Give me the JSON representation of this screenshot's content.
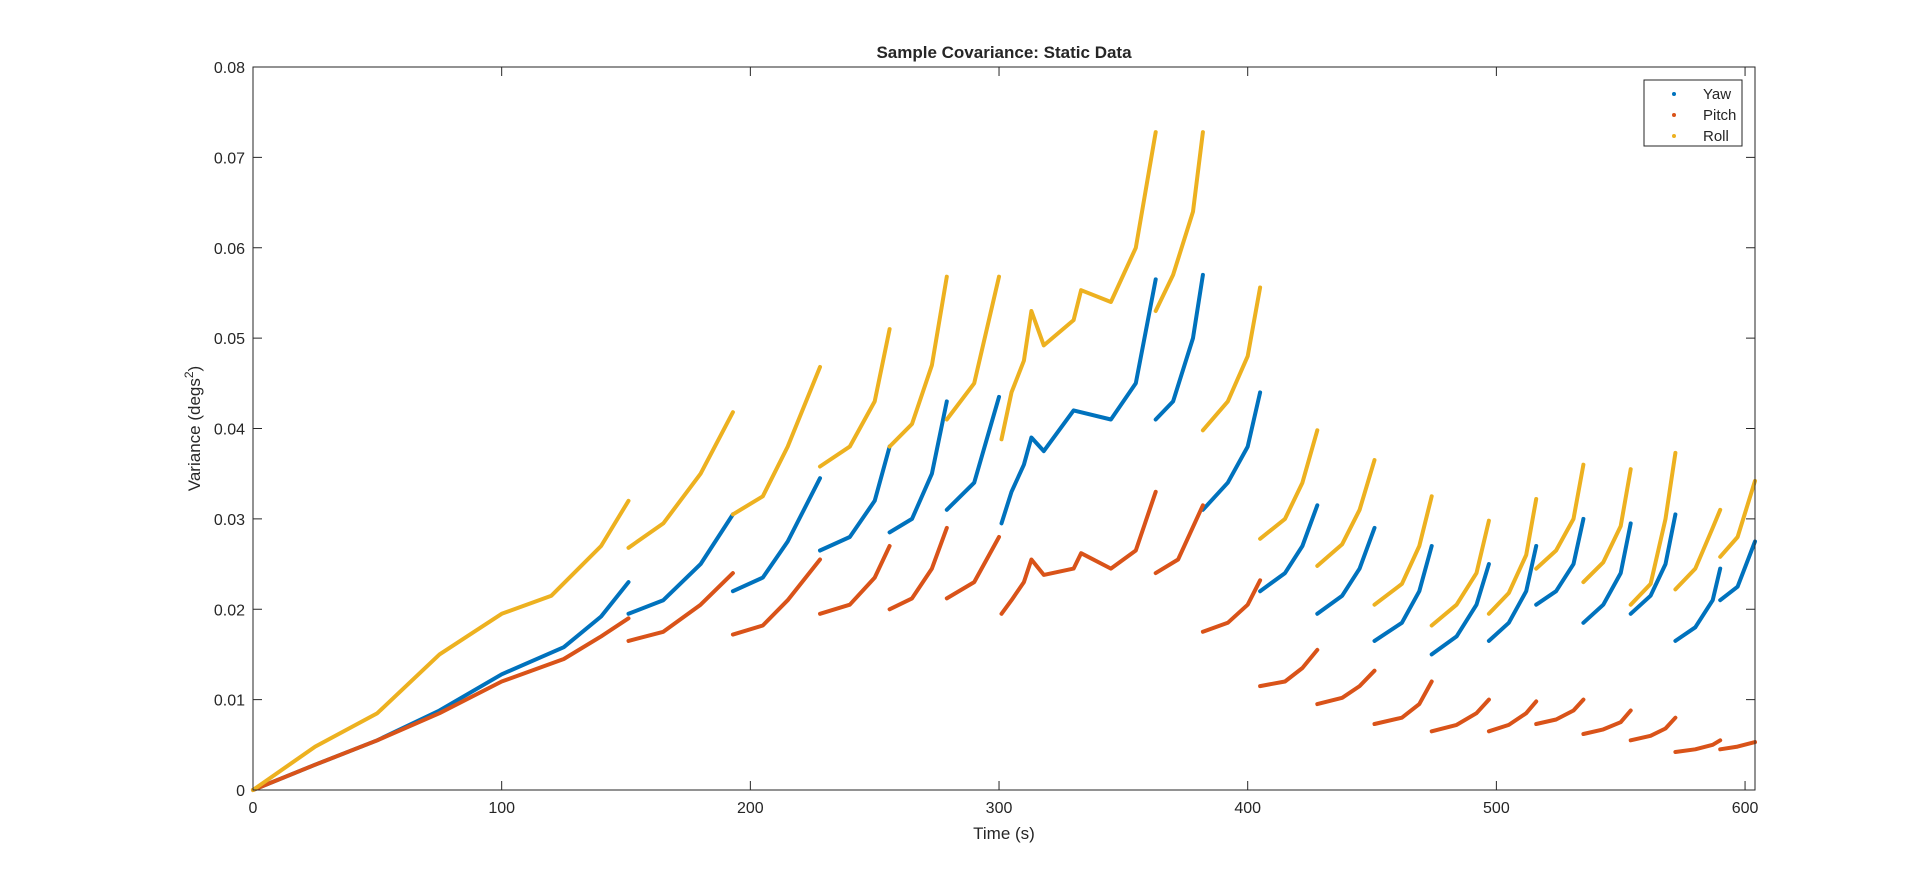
{
  "chart_data": {
    "type": "scatter",
    "title": "Sample Covariance: Static Data",
    "xlabel": "Time (s)",
    "ylabel": "Variance (degs",
    "ylabel_superscript": "2",
    "ylabel_suffix": ")",
    "xlim": [
      0,
      604
    ],
    "ylim": [
      0,
      0.08
    ],
    "xticks": [
      0,
      100,
      200,
      300,
      400,
      500,
      600
    ],
    "yticks": [
      0,
      0.01,
      0.02,
      0.03,
      0.04,
      0.05,
      0.06,
      0.07,
      0.08
    ],
    "xtick_labels": [
      "0",
      "100",
      "200",
      "300",
      "400",
      "500",
      "600"
    ],
    "ytick_labels": [
      "0",
      "0.01",
      "0.02",
      "0.03",
      "0.04",
      "0.05",
      "0.06",
      "0.07",
      "0.08"
    ],
    "grid": false,
    "legend_position": "top-right",
    "series": [
      {
        "name": "Yaw",
        "color": "#0072BD",
        "segments": [
          [
            [
              0,
              0
            ],
            [
              25,
              0.0028
            ],
            [
              50,
              0.0055
            ],
            [
              75,
              0.0088
            ],
            [
              100,
              0.0128
            ],
            [
              125,
              0.0158
            ],
            [
              140,
              0.0192
            ],
            [
              151,
              0.023
            ]
          ],
          [
            [
              151,
              0.0195
            ],
            [
              165,
              0.021
            ],
            [
              180,
              0.025
            ],
            [
              193,
              0.0305
            ]
          ],
          [
            [
              193,
              0.022
            ],
            [
              205,
              0.0235
            ],
            [
              215,
              0.0275
            ],
            [
              228,
              0.0345
            ]
          ],
          [
            [
              228,
              0.0265
            ],
            [
              240,
              0.028
            ],
            [
              250,
              0.032
            ],
            [
              256,
              0.038
            ]
          ],
          [
            [
              256,
              0.0285
            ],
            [
              265,
              0.03
            ],
            [
              273,
              0.035
            ],
            [
              279,
              0.043
            ]
          ],
          [
            [
              279,
              0.031
            ],
            [
              290,
              0.034
            ],
            [
              300,
              0.0435
            ]
          ],
          [
            [
              301,
              0.0295
            ],
            [
              305,
              0.033
            ],
            [
              310,
              0.036
            ],
            [
              313,
              0.039
            ],
            [
              318,
              0.0375
            ],
            [
              330,
              0.042
            ],
            [
              345,
              0.041
            ],
            [
              355,
              0.045
            ],
            [
              363,
              0.0565
            ]
          ],
          [
            [
              363,
              0.041
            ],
            [
              370,
              0.043
            ],
            [
              378,
              0.05
            ],
            [
              382,
              0.057
            ]
          ],
          [
            [
              382,
              0.031
            ],
            [
              392,
              0.034
            ],
            [
              400,
              0.038
            ],
            [
              405,
              0.044
            ]
          ],
          [
            [
              405,
              0.022
            ],
            [
              415,
              0.024
            ],
            [
              422,
              0.027
            ],
            [
              428,
              0.0315
            ]
          ],
          [
            [
              428,
              0.0195
            ],
            [
              438,
              0.0215
            ],
            [
              445,
              0.0245
            ],
            [
              451,
              0.029
            ]
          ],
          [
            [
              451,
              0.0165
            ],
            [
              462,
              0.0185
            ],
            [
              469,
              0.022
            ],
            [
              474,
              0.027
            ]
          ],
          [
            [
              474,
              0.015
            ],
            [
              484,
              0.017
            ],
            [
              492,
              0.0205
            ],
            [
              497,
              0.025
            ]
          ],
          [
            [
              497,
              0.0165
            ],
            [
              505,
              0.0185
            ],
            [
              512,
              0.022
            ],
            [
              516,
              0.027
            ]
          ],
          [
            [
              516,
              0.0205
            ],
            [
              524,
              0.022
            ],
            [
              531,
              0.025
            ],
            [
              535,
              0.03
            ]
          ],
          [
            [
              535,
              0.0185
            ],
            [
              543,
              0.0205
            ],
            [
              550,
              0.024
            ],
            [
              554,
              0.0295
            ]
          ],
          [
            [
              554,
              0.0195
            ],
            [
              562,
              0.0215
            ],
            [
              568,
              0.025
            ],
            [
              572,
              0.0305
            ]
          ],
          [
            [
              572,
              0.0165
            ],
            [
              580,
              0.018
            ],
            [
              587,
              0.021
            ],
            [
              590,
              0.0245
            ]
          ],
          [
            [
              590,
              0.021
            ],
            [
              597,
              0.0225
            ],
            [
              604,
              0.0275
            ]
          ]
        ]
      },
      {
        "name": "Pitch",
        "color": "#D95319",
        "segments": [
          [
            [
              0,
              0
            ],
            [
              25,
              0.0028
            ],
            [
              50,
              0.0055
            ],
            [
              75,
              0.0085
            ],
            [
              100,
              0.012
            ],
            [
              125,
              0.0145
            ],
            [
              140,
              0.017
            ],
            [
              151,
              0.019
            ]
          ],
          [
            [
              151,
              0.0165
            ],
            [
              165,
              0.0175
            ],
            [
              180,
              0.0205
            ],
            [
              193,
              0.024
            ]
          ],
          [
            [
              193,
              0.0172
            ],
            [
              205,
              0.0182
            ],
            [
              215,
              0.021
            ],
            [
              228,
              0.0255
            ]
          ],
          [
            [
              228,
              0.0195
            ],
            [
              240,
              0.0205
            ],
            [
              250,
              0.0235
            ],
            [
              256,
              0.027
            ]
          ],
          [
            [
              256,
              0.02
            ],
            [
              265,
              0.0212
            ],
            [
              273,
              0.0245
            ],
            [
              279,
              0.029
            ]
          ],
          [
            [
              279,
              0.0212
            ],
            [
              290,
              0.023
            ],
            [
              300,
              0.028
            ]
          ],
          [
            [
              301,
              0.0195
            ],
            [
              305,
              0.021
            ],
            [
              310,
              0.023
            ],
            [
              313,
              0.0255
            ],
            [
              318,
              0.0238
            ],
            [
              330,
              0.0245
            ],
            [
              333,
              0.0262
            ],
            [
              345,
              0.0245
            ],
            [
              355,
              0.0265
            ],
            [
              363,
              0.033
            ]
          ],
          [
            [
              363,
              0.024
            ],
            [
              372,
              0.0255
            ],
            [
              382,
              0.0315
            ]
          ],
          [
            [
              382,
              0.0175
            ],
            [
              392,
              0.0185
            ],
            [
              400,
              0.0205
            ],
            [
              405,
              0.0232
            ]
          ],
          [
            [
              405,
              0.0115
            ],
            [
              415,
              0.012
            ],
            [
              422,
              0.0135
            ],
            [
              428,
              0.0155
            ]
          ],
          [
            [
              428,
              0.0095
            ],
            [
              438,
              0.0102
            ],
            [
              445,
              0.0115
            ],
            [
              451,
              0.0132
            ]
          ],
          [
            [
              451,
              0.0073
            ],
            [
              462,
              0.008
            ],
            [
              469,
              0.0095
            ],
            [
              474,
              0.012
            ]
          ],
          [
            [
              474,
              0.0065
            ],
            [
              484,
              0.0072
            ],
            [
              492,
              0.0085
            ],
            [
              497,
              0.01
            ]
          ],
          [
            [
              497,
              0.0065
            ],
            [
              505,
              0.0072
            ],
            [
              512,
              0.0085
            ],
            [
              516,
              0.0098
            ]
          ],
          [
            [
              516,
              0.0073
            ],
            [
              524,
              0.0078
            ],
            [
              531,
              0.0088
            ],
            [
              535,
              0.01
            ]
          ],
          [
            [
              535,
              0.0062
            ],
            [
              543,
              0.0067
            ],
            [
              550,
              0.0075
            ],
            [
              554,
              0.0088
            ]
          ],
          [
            [
              554,
              0.0055
            ],
            [
              562,
              0.006
            ],
            [
              568,
              0.0068
            ],
            [
              572,
              0.008
            ]
          ],
          [
            [
              572,
              0.0042
            ],
            [
              580,
              0.0045
            ],
            [
              587,
              0.005
            ],
            [
              590,
              0.0055
            ]
          ],
          [
            [
              590,
              0.0045
            ],
            [
              597,
              0.0048
            ],
            [
              604,
              0.0053
            ]
          ]
        ]
      },
      {
        "name": "Roll",
        "color": "#EDB120",
        "segments": [
          [
            [
              0,
              0
            ],
            [
              25,
              0.0048
            ],
            [
              50,
              0.0085
            ],
            [
              75,
              0.015
            ],
            [
              100,
              0.0195
            ],
            [
              120,
              0.0215
            ],
            [
              140,
              0.027
            ],
            [
              151,
              0.032
            ]
          ],
          [
            [
              151,
              0.0268
            ],
            [
              165,
              0.0295
            ],
            [
              180,
              0.035
            ],
            [
              193,
              0.0418
            ]
          ],
          [
            [
              193,
              0.0305
            ],
            [
              205,
              0.0325
            ],
            [
              215,
              0.038
            ],
            [
              228,
              0.0468
            ]
          ],
          [
            [
              228,
              0.0358
            ],
            [
              240,
              0.038
            ],
            [
              250,
              0.043
            ],
            [
              256,
              0.051
            ]
          ],
          [
            [
              256,
              0.038
            ],
            [
              265,
              0.0405
            ],
            [
              273,
              0.047
            ],
            [
              279,
              0.0568
            ]
          ],
          [
            [
              279,
              0.041
            ],
            [
              290,
              0.045
            ],
            [
              300,
              0.0568
            ]
          ],
          [
            [
              301,
              0.0388
            ],
            [
              305,
              0.044
            ],
            [
              310,
              0.0475
            ],
            [
              313,
              0.053
            ],
            [
              318,
              0.0492
            ],
            [
              330,
              0.052
            ],
            [
              333,
              0.0553
            ],
            [
              345,
              0.054
            ],
            [
              355,
              0.06
            ],
            [
              363,
              0.0728
            ]
          ],
          [
            [
              363,
              0.053
            ],
            [
              370,
              0.057
            ],
            [
              378,
              0.064
            ],
            [
              382,
              0.0728
            ]
          ],
          [
            [
              382,
              0.0398
            ],
            [
              392,
              0.043
            ],
            [
              400,
              0.048
            ],
            [
              405,
              0.0556
            ]
          ],
          [
            [
              405,
              0.0278
            ],
            [
              415,
              0.03
            ],
            [
              422,
              0.034
            ],
            [
              428,
              0.0398
            ]
          ],
          [
            [
              428,
              0.0248
            ],
            [
              438,
              0.0272
            ],
            [
              445,
              0.031
            ],
            [
              451,
              0.0365
            ]
          ],
          [
            [
              451,
              0.0205
            ],
            [
              462,
              0.0228
            ],
            [
              469,
              0.027
            ],
            [
              474,
              0.0325
            ]
          ],
          [
            [
              474,
              0.0182
            ],
            [
              484,
              0.0205
            ],
            [
              492,
              0.024
            ],
            [
              497,
              0.0298
            ]
          ],
          [
            [
              497,
              0.0195
            ],
            [
              505,
              0.0218
            ],
            [
              512,
              0.026
            ],
            [
              516,
              0.0322
            ]
          ],
          [
            [
              516,
              0.0245
            ],
            [
              524,
              0.0265
            ],
            [
              531,
              0.03
            ],
            [
              535,
              0.036
            ]
          ],
          [
            [
              535,
              0.023
            ],
            [
              543,
              0.0252
            ],
            [
              550,
              0.0292
            ],
            [
              554,
              0.0355
            ]
          ],
          [
            [
              554,
              0.0205
            ],
            [
              562,
              0.0228
            ],
            [
              568,
              0.03
            ],
            [
              572,
              0.0373
            ]
          ],
          [
            [
              572,
              0.0222
            ],
            [
              580,
              0.0245
            ],
            [
              587,
              0.029
            ],
            [
              590,
              0.031
            ]
          ],
          [
            [
              590,
              0.0258
            ],
            [
              597,
              0.028
            ],
            [
              604,
              0.0342
            ]
          ]
        ]
      }
    ]
  }
}
